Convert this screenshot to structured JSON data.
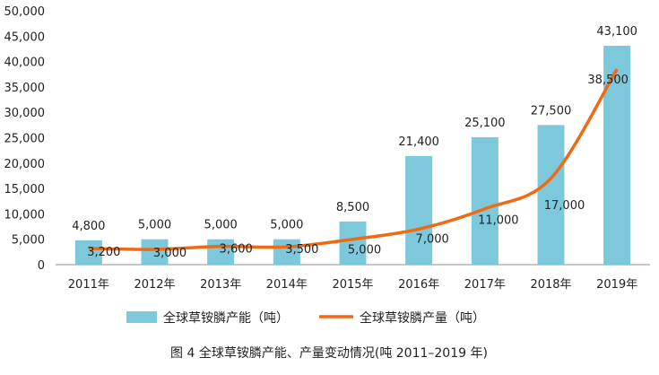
{
  "caption": "图 4  全球草铵膦产能、产量变动情况(吨  2011–2019 年)",
  "colors": {
    "bar": "#7ec8dc",
    "line": "#ee6a14",
    "text": "#222222",
    "axis": "#8c8c8c"
  },
  "chart_data": {
    "type": "bar",
    "title": "",
    "xlabel": "",
    "ylabel": "",
    "ylim": [
      0,
      50000
    ],
    "ytick_step": 5000,
    "grid": false,
    "legend_position": "bottom",
    "categories": [
      "2011年",
      "2012年",
      "2013年",
      "2014年",
      "2015年",
      "2016年",
      "2017年",
      "2018年",
      "2019年"
    ],
    "series": [
      {
        "name": "全球草铵膦产能（吨）",
        "type": "bar",
        "values": [
          4800,
          5000,
          5000,
          5000,
          8500,
          21400,
          25100,
          27500,
          43100
        ],
        "labels": [
          "4,800",
          "5,000",
          "5,000",
          "5,000",
          "8,500",
          "21,400",
          "25,100",
          "27,500",
          "43,100"
        ]
      },
      {
        "name": "全球草铵膦产量（吨）",
        "type": "line",
        "values": [
          3200,
          3000,
          3600,
          3500,
          5000,
          7000,
          11000,
          17000,
          38500
        ],
        "labels": [
          "3,200",
          "3,000",
          "3,600",
          "3,500",
          "5,000",
          "7,000",
          "11,000",
          "17,000",
          "38,500"
        ]
      }
    ]
  }
}
